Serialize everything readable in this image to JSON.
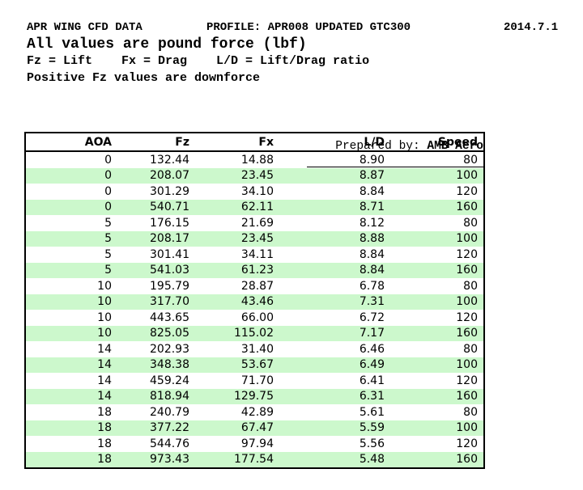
{
  "header": {
    "title": "APR WING CFD DATA",
    "profile": "PROFILE: APR008 UPDATED GTC300",
    "version_date": "2014.7.1",
    "units_note": "All values are pound force (lbf)",
    "legend_note": "Fz = Lift    Fx = Drag    L/D = Lift/Drag ratio",
    "downforce_note": "Positive Fz values are downforce"
  },
  "prepared_by": {
    "label": "Prepared by: ",
    "value": "AMB Aero"
  },
  "table": {
    "columns": [
      "AOA",
      "Fz",
      "Fx",
      "L/D",
      "Speed"
    ],
    "rows": [
      [
        "0",
        "132.44",
        "14.88",
        "8.90",
        "80"
      ],
      [
        "0",
        "208.07",
        "23.45",
        "8.87",
        "100"
      ],
      [
        "0",
        "301.29",
        "34.10",
        "8.84",
        "120"
      ],
      [
        "0",
        "540.71",
        "62.11",
        "8.71",
        "160"
      ],
      [
        "5",
        "176.15",
        "21.69",
        "8.12",
        "80"
      ],
      [
        "5",
        "208.17",
        "23.45",
        "8.88",
        "100"
      ],
      [
        "5",
        "301.41",
        "34.11",
        "8.84",
        "120"
      ],
      [
        "5",
        "541.03",
        "61.23",
        "8.84",
        "160"
      ],
      [
        "10",
        "195.79",
        "28.87",
        "6.78",
        "80"
      ],
      [
        "10",
        "317.70",
        "43.46",
        "7.31",
        "100"
      ],
      [
        "10",
        "443.65",
        "66.00",
        "6.72",
        "120"
      ],
      [
        "10",
        "825.05",
        "115.02",
        "7.17",
        "160"
      ],
      [
        "14",
        "202.93",
        "31.40",
        "6.46",
        "80"
      ],
      [
        "14",
        "348.38",
        "53.67",
        "6.49",
        "100"
      ],
      [
        "14",
        "459.24",
        "71.70",
        "6.41",
        "120"
      ],
      [
        "14",
        "818.94",
        "129.75",
        "6.31",
        "160"
      ],
      [
        "18",
        "240.79",
        "42.89",
        "5.61",
        "80"
      ],
      [
        "18",
        "377.22",
        "67.47",
        "5.59",
        "100"
      ],
      [
        "18",
        "544.76",
        "97.94",
        "5.56",
        "120"
      ],
      [
        "18",
        "973.43",
        "177.54",
        "5.48",
        "160"
      ]
    ]
  },
  "colors": {
    "row_alt_green": "#ccf8cc",
    "text": "#000000",
    "border": "#000000"
  }
}
